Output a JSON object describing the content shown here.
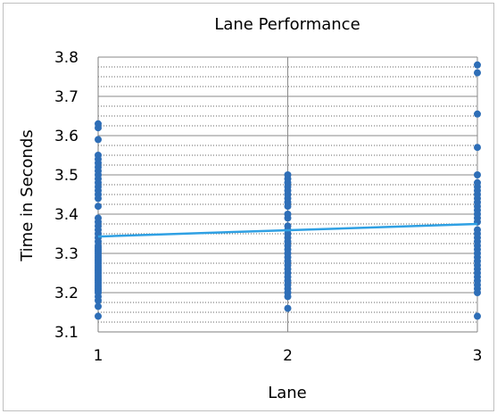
{
  "chart_data": {
    "type": "scatter",
    "title": "Lane Performance",
    "xlabel": "Lane",
    "ylabel": "Time in Seconds",
    "xlim": [
      1,
      3
    ],
    "ylim": [
      3.1,
      3.8
    ],
    "x_ticks": [
      "1",
      "2",
      "3"
    ],
    "y_ticks": [
      "3.1",
      "3.2",
      "3.3",
      "3.4",
      "3.5",
      "3.6",
      "3.7",
      "3.8"
    ],
    "grid": true,
    "legend": "none",
    "colors": {
      "points": "#2e6eb7",
      "trendline": "#2fa0e3",
      "major_grid": "#8a8a8a",
      "minor_grid": "#333333",
      "frame": "#bfbfbf"
    },
    "series": [
      {
        "x": 1,
        "values": [
          3.14,
          3.165,
          3.18,
          3.19,
          3.2,
          3.205,
          3.21,
          3.215,
          3.22,
          3.225,
          3.23,
          3.235,
          3.24,
          3.245,
          3.25,
          3.255,
          3.26,
          3.265,
          3.27,
          3.275,
          3.28,
          3.285,
          3.29,
          3.295,
          3.3,
          3.305,
          3.31,
          3.315,
          3.32,
          3.33,
          3.34,
          3.35,
          3.36,
          3.37,
          3.38,
          3.39,
          3.42,
          3.44,
          3.45,
          3.46,
          3.47,
          3.48,
          3.49,
          3.5,
          3.51,
          3.52,
          3.53,
          3.54,
          3.55,
          3.59,
          3.62,
          3.63
        ]
      },
      {
        "x": 2,
        "values": [
          3.16,
          3.19,
          3.2,
          3.21,
          3.22,
          3.23,
          3.24,
          3.25,
          3.26,
          3.27,
          3.28,
          3.29,
          3.3,
          3.31,
          3.32,
          3.33,
          3.34,
          3.35,
          3.36,
          3.37,
          3.39,
          3.4,
          3.42,
          3.43,
          3.44,
          3.45,
          3.46,
          3.47,
          3.48,
          3.49,
          3.5
        ]
      },
      {
        "x": 3,
        "values": [
          3.14,
          3.2,
          3.21,
          3.22,
          3.23,
          3.24,
          3.25,
          3.26,
          3.27,
          3.28,
          3.29,
          3.3,
          3.31,
          3.32,
          3.33,
          3.34,
          3.35,
          3.36,
          3.38,
          3.39,
          3.4,
          3.41,
          3.42,
          3.43,
          3.44,
          3.45,
          3.46,
          3.47,
          3.48,
          3.5,
          3.57,
          3.655,
          3.76,
          3.78
        ]
      }
    ],
    "trendline": {
      "x": [
        1,
        3
      ],
      "y": [
        3.343,
        3.375
      ]
    }
  }
}
